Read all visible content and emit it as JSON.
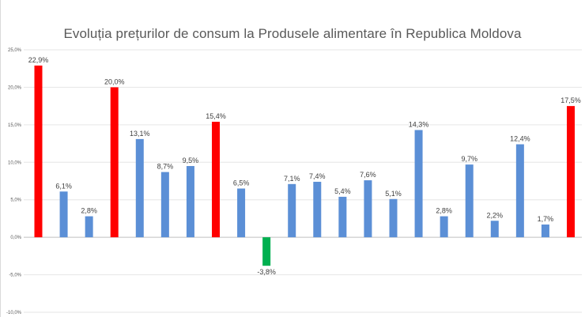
{
  "chart_data": {
    "type": "bar",
    "title": "Evoluția prețurilor de consum la Produsele alimentare în Republica Moldova",
    "xlabel": "",
    "ylabel": "",
    "ylim": [
      -10,
      25
    ],
    "y_ticks": [
      "25,0%",
      "20,0%",
      "15,0%",
      "10,0%",
      "5,0%",
      "0,0%",
      "-5,0%",
      "-10,0%"
    ],
    "y_tick_values": [
      25,
      20,
      15,
      10,
      5,
      0,
      -5,
      -10
    ],
    "grid": true,
    "legend": "none",
    "values": [
      22.9,
      6.1,
      2.8,
      20.0,
      13.1,
      8.7,
      9.5,
      15.4,
      6.5,
      -3.8,
      7.1,
      7.4,
      5.4,
      7.6,
      5.1,
      14.3,
      2.8,
      9.7,
      2.2,
      12.4,
      1.7,
      17.5
    ],
    "labels": [
      "22,9%",
      "6,1%",
      "2,8%",
      "20,0%",
      "13,1%",
      "8,7%",
      "9,5%",
      "15,4%",
      "6,5%",
      "-3,8%",
      "7,1%",
      "7,4%",
      "5,4%",
      "7,6%",
      "5,1%",
      "14,3%",
      "2,8%",
      "9,7%",
      "2,2%",
      "12,4%",
      "1,7%",
      "17,5%"
    ],
    "bar_colors": [
      "#ff0000",
      "#5b8fd6",
      "#5b8fd6",
      "#ff0000",
      "#5b8fd6",
      "#5b8fd6",
      "#5b8fd6",
      "#ff0000",
      "#5b8fd6",
      "#00b050",
      "#5b8fd6",
      "#5b8fd6",
      "#5b8fd6",
      "#5b8fd6",
      "#5b8fd6",
      "#5b8fd6",
      "#5b8fd6",
      "#5b8fd6",
      "#5b8fd6",
      "#5b8fd6",
      "#5b8fd6",
      "#ff0000"
    ]
  },
  "colors": {
    "gridline": "#e6e6e6",
    "axis_line": "#bfbfbf"
  }
}
